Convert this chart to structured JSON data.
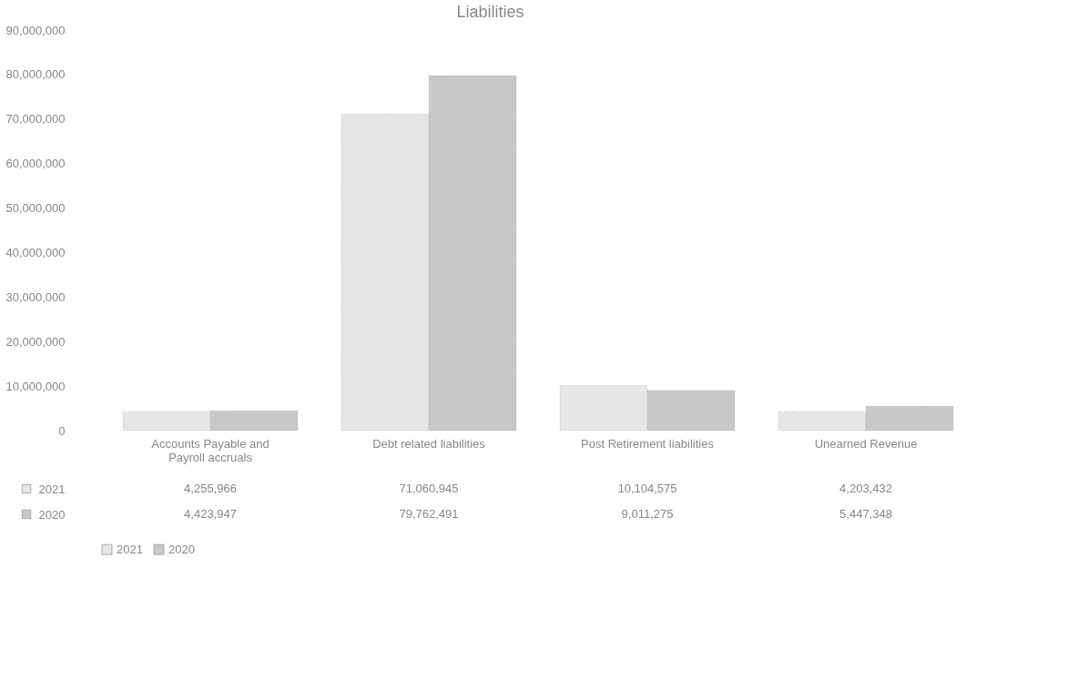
{
  "chart_data": {
    "type": "bar",
    "title": "Liabilities",
    "categories": [
      "Accounts Payable and Payroll accruals",
      "Debt related liabilities",
      "Post Retirement liabilities",
      "Unearned Revenue"
    ],
    "series": [
      {
        "name": "2021",
        "color": "#e6e6e6",
        "values": [
          4255966,
          71060945,
          10104575,
          4203432
        ],
        "value_labels": [
          "4,255,966",
          "71,060,945",
          "10,104,575",
          "4,203,432"
        ]
      },
      {
        "name": "2020",
        "color": "#c8c8c8",
        "values": [
          4423947,
          79762491,
          9011275,
          5447348
        ],
        "value_labels": [
          "4,423,947",
          "79,762,491",
          "9,011,275",
          "5,447,348"
        ]
      }
    ],
    "ylim": [
      0,
      90000000
    ],
    "yticks": [
      {
        "value": 0,
        "label": "0"
      },
      {
        "value": 10000000,
        "label": "10,000,000"
      },
      {
        "value": 20000000,
        "label": "20,000,000"
      },
      {
        "value": 30000000,
        "label": "30,000,000"
      },
      {
        "value": 40000000,
        "label": "40,000,000"
      },
      {
        "value": 50000000,
        "label": "50,000,000"
      },
      {
        "value": 60000000,
        "label": "60,000,000"
      },
      {
        "value": 70000000,
        "label": "70,000,000"
      },
      {
        "value": 80000000,
        "label": "80,000,000"
      },
      {
        "value": 90000000,
        "label": "90,000,000"
      }
    ],
    "grid": false,
    "legend": "bottom"
  }
}
